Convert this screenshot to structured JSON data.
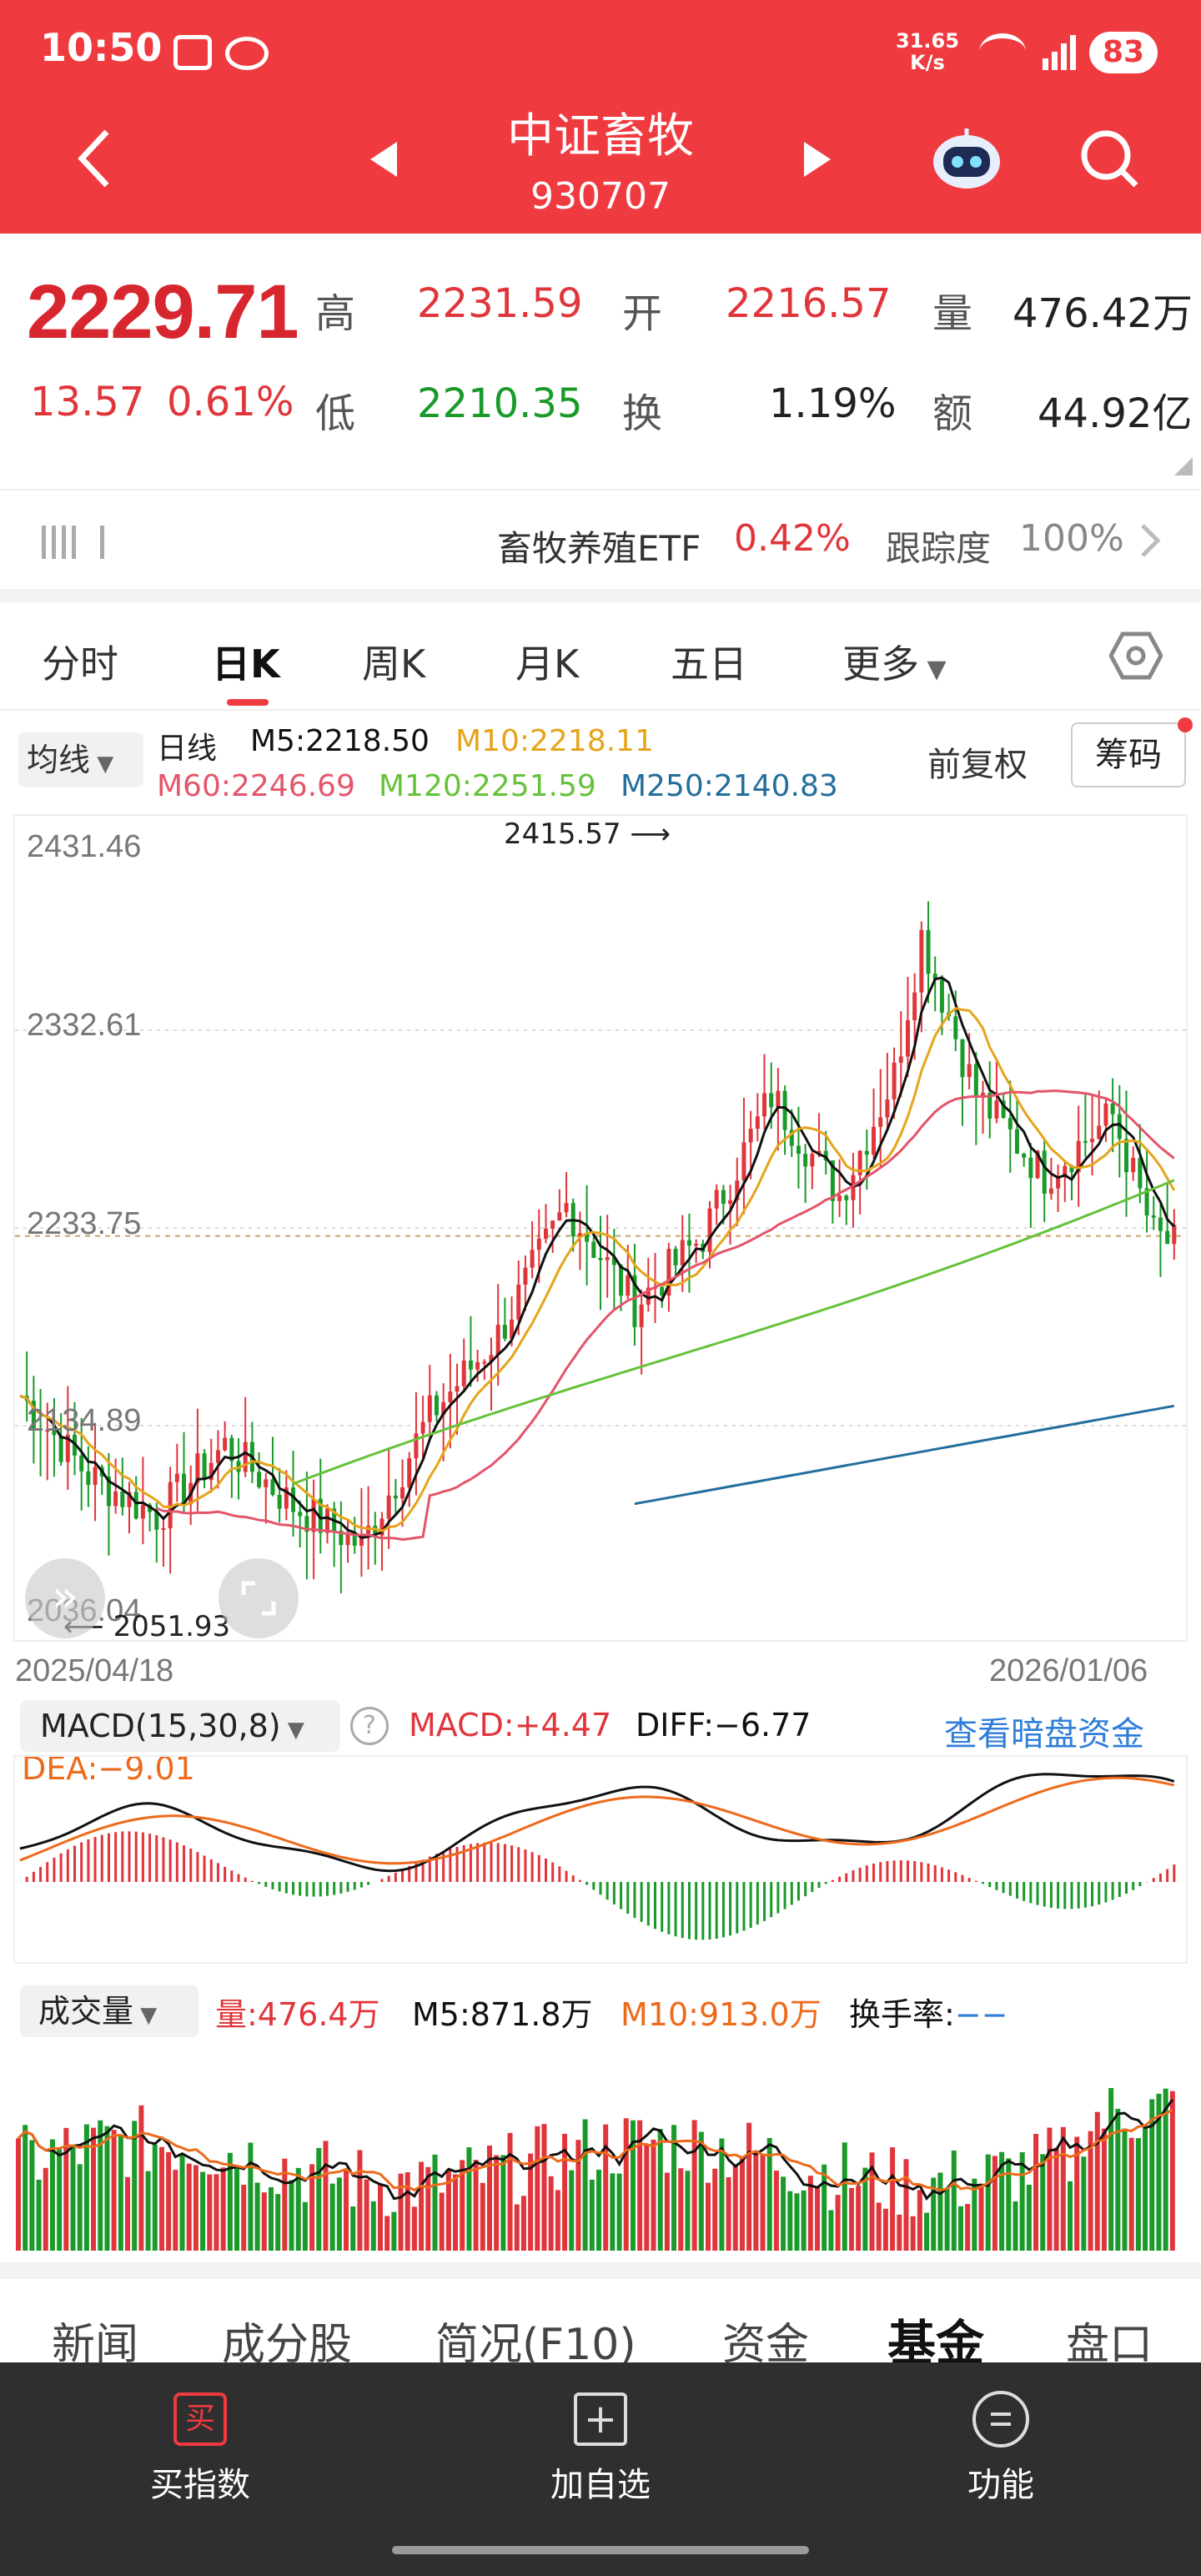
{
  "status": {
    "time": "10:50",
    "net_speed": "31.65",
    "net_unit": "K/s",
    "battery": "83"
  },
  "header": {
    "title": "中证畜牧",
    "code": "930707"
  },
  "quote": {
    "price": "2229.71",
    "change": "13.57",
    "change_pct": "0.61%",
    "high_label": "高",
    "high": "2231.59",
    "open_label": "开",
    "open": "2216.57",
    "vol_label": "量",
    "vol": "476.42万",
    "low_label": "低",
    "low": "2210.35",
    "turn_label": "换",
    "turn": "1.19%",
    "amt_label": "额",
    "amt": "44.92亿"
  },
  "etf": {
    "name": "畜牧养殖ETF",
    "pct": "0.42%",
    "track_label": "跟踪度",
    "track": "100%"
  },
  "tabs": [
    "分时",
    "日K",
    "周K",
    "月K",
    "五日",
    "更多"
  ],
  "tabs_active": 1,
  "kchart": {
    "ma_btn": "均线",
    "period": "日线",
    "m5": "M5:2218.50",
    "m10": "M10:2218.11",
    "m60": "M60:2246.69",
    "m120": "M120:2251.59",
    "m250": "M250:2140.83",
    "adjust": "前复权",
    "chips": "筹码",
    "yticks": [
      "2431.46",
      "2332.61",
      "2233.75",
      "2134.89",
      "2036.04"
    ],
    "max_label": "2415.57",
    "min_label": "2051.93",
    "date_start": "2025/04/18",
    "date_end": "2026/01/06"
  },
  "macd": {
    "title": "MACD(15,30,8)",
    "macd": "MACD:+4.47",
    "diff": "DIFF:−6.77",
    "dea": "DEA:−9.01",
    "link": "查看暗盘资金"
  },
  "volume": {
    "title": "成交量",
    "vol": "量:476.4万",
    "m5": "M5:871.8万",
    "m10": "M10:913.0万",
    "turn": "换手率:",
    "turn_val": "−−"
  },
  "bottom_tabs": [
    "新闻",
    "成分股",
    "简况(F10)",
    "资金",
    "基金",
    "盘口"
  ],
  "bottom_active": 4,
  "nav": {
    "buy": "买指数",
    "buy_icon": "买",
    "add": "加自选",
    "func": "功能"
  },
  "colors": {
    "red": "#e0353b",
    "green": "#1a9a2a",
    "header": "#ef3a3f",
    "m5": "#111111",
    "m10": "#e6a41a",
    "m60": "#e3556b",
    "m120": "#66c23a",
    "m250": "#236e9c"
  }
}
